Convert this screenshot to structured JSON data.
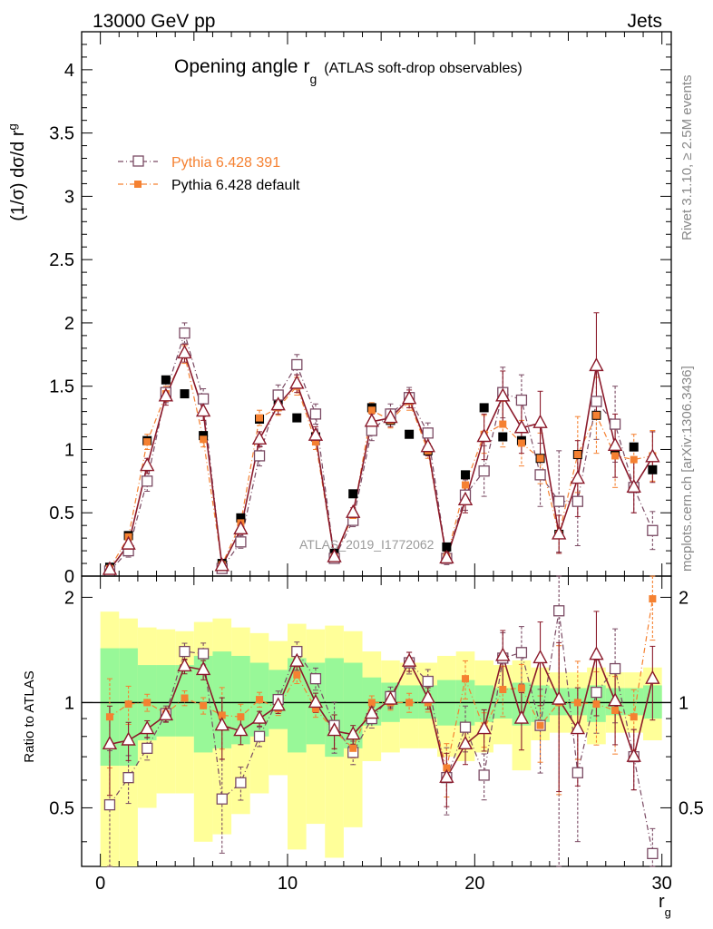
{
  "header": {
    "left": "13000 GeV pp",
    "right": "Jets"
  },
  "title": {
    "main": "Opening angle r",
    "main_sub": "g",
    "detail": "(ATLAS soft-drop observables)"
  },
  "side_labels": {
    "rivet": "Rivet 3.1.10, ≥ 2.5M events",
    "mcplots": "mcplots.cern.ch [arXiv:1306.3436]"
  },
  "watermark": "ATLAS_2019_I1772062",
  "colors": {
    "data": "#000000",
    "pythia391": "#7a4a63",
    "pythia_default": "#f58131",
    "third": "#8b1a2b",
    "band_inner": "#98f898",
    "band_outer": "#ffff99"
  },
  "chart_data": [
    {
      "type": "scatter",
      "title": "Opening angle r_g (ATLAS soft-drop observables)",
      "xlabel": "r",
      "xlabel_sub": "g",
      "ylabel": "(1/σ) dσ/d r",
      "ylabel_sub": "g",
      "xlim": [
        -1,
        30.5
      ],
      "ylim": [
        0,
        4.3
      ],
      "x_ticks": [
        0,
        10,
        20,
        30
      ],
      "y_ticks": [
        "0",
        "0.5",
        "1",
        "1.5",
        "2",
        "2.5",
        "3",
        "3.5",
        "4"
      ],
      "legend_position": "upper-left",
      "x": [
        0.5,
        1.5,
        2.5,
        3.5,
        4.5,
        5.5,
        6.5,
        7.5,
        8.5,
        9.5,
        10.5,
        11.5,
        12.5,
        13.5,
        14.5,
        15.5,
        16.5,
        17.5,
        18.5,
        19.5,
        20.5,
        21.5,
        22.5,
        23.5,
        24.5,
        25.5,
        26.5,
        27.5,
        28.5,
        29.5
      ],
      "series": [
        {
          "name": "",
          "role": "data",
          "marker": "filled-square",
          "values": [
            0.07,
            0.32,
            1.07,
            1.55,
            1.44,
            1.11,
            0.1,
            0.46,
            1.24,
            1.39,
            1.25,
            1.1,
            0.18,
            0.65,
            1.33,
            1.23,
            1.12,
            0.99,
            0.23,
            0.8,
            1.33,
            1.1,
            1.07,
            0.93,
            0.33,
            0.96,
            1.27,
            1.0,
            1.02,
            0.84
          ]
        },
        {
          "name": "Pythia 6.428 391",
          "role": "mc",
          "marker": "open-square",
          "values": [
            0.04,
            0.2,
            0.75,
            1.45,
            1.92,
            1.4,
            0.06,
            0.27,
            0.95,
            1.43,
            1.67,
            1.28,
            0.14,
            0.44,
            1.15,
            1.28,
            1.41,
            1.13,
            0.14,
            0.64,
            0.83,
            1.45,
            1.39,
            0.8,
            0.59,
            0.59,
            1.38,
            1.2,
            0.7,
            0.36
          ],
          "err": [
            0.03,
            0.05,
            0.08,
            0.08,
            0.08,
            0.08,
            0.03,
            0.05,
            0.08,
            0.08,
            0.08,
            0.08,
            0.03,
            0.05,
            0.08,
            0.08,
            0.08,
            0.08,
            0.05,
            0.12,
            0.2,
            0.2,
            0.2,
            0.25,
            0.4,
            0.35,
            0.3,
            0.3,
            0.2,
            0.15
          ]
        },
        {
          "name": "Pythia 6.428 default",
          "role": "mc",
          "marker": "filled-square",
          "values": [
            0.06,
            0.31,
            1.06,
            1.44,
            1.75,
            1.08,
            0.09,
            0.42,
            1.25,
            1.33,
            1.5,
            1.06,
            0.15,
            0.48,
            1.31,
            1.23,
            1.38,
            0.99,
            0.15,
            0.72,
            1.12,
            1.2,
            1.05,
            0.93,
            0.33,
            0.96,
            1.27,
            0.95,
            0.92,
            0.95
          ],
          "err": [
            0.02,
            0.04,
            0.06,
            0.06,
            0.07,
            0.06,
            0.02,
            0.04,
            0.06,
            0.06,
            0.07,
            0.06,
            0.02,
            0.04,
            0.06,
            0.06,
            0.07,
            0.06,
            0.04,
            0.1,
            0.15,
            0.18,
            0.18,
            0.2,
            0.15,
            0.3,
            0.3,
            0.25,
            0.2,
            0.2
          ]
        },
        {
          "name": "",
          "role": "mc",
          "marker": "open-triangle",
          "values": [
            0.05,
            0.25,
            0.87,
            1.42,
            1.76,
            1.3,
            0.08,
            0.37,
            1.08,
            1.35,
            1.52,
            1.11,
            0.15,
            0.5,
            1.22,
            1.25,
            1.4,
            1.02,
            0.14,
            0.6,
            1.1,
            1.42,
            1.17,
            1.21,
            0.33,
            0.77,
            1.66,
            1.03,
            0.7,
            0.94
          ],
          "err": [
            0.02,
            0.04,
            0.06,
            0.07,
            0.07,
            0.07,
            0.02,
            0.04,
            0.06,
            0.07,
            0.07,
            0.07,
            0.02,
            0.04,
            0.06,
            0.07,
            0.07,
            0.07,
            0.04,
            0.1,
            0.18,
            0.2,
            0.2,
            0.25,
            0.15,
            0.3,
            0.42,
            0.25,
            0.2,
            0.2
          ]
        }
      ]
    },
    {
      "type": "scatter",
      "ylabel": "Ratio to ATLAS",
      "xlim": [
        -1,
        30.5
      ],
      "ylim": [
        0.34,
        2.3
      ],
      "y_ticks": [
        "0.5",
        "1",
        "2"
      ],
      "reference_line": 1,
      "band_inner": [
        [
          0.66,
          1.43
        ],
        [
          0.66,
          1.43
        ],
        [
          0.78,
          1.28
        ],
        [
          0.8,
          1.28
        ],
        [
          0.8,
          1.28
        ],
        [
          0.72,
          1.36
        ],
        [
          0.74,
          1.4
        ],
        [
          0.76,
          1.36
        ],
        [
          0.8,
          1.3
        ],
        [
          0.84,
          1.24
        ],
        [
          0.72,
          1.34
        ],
        [
          0.76,
          1.3
        ],
        [
          0.7,
          1.34
        ],
        [
          0.74,
          1.3
        ],
        [
          0.86,
          1.18
        ],
        [
          0.88,
          1.14
        ],
        [
          0.9,
          1.12
        ],
        [
          0.9,
          1.12
        ],
        [
          0.86,
          1.16
        ],
        [
          0.86,
          1.16
        ],
        [
          0.88,
          1.12
        ],
        [
          0.9,
          1.1
        ],
        [
          0.86,
          1.14
        ],
        [
          0.88,
          1.12
        ],
        [
          0.92,
          1.1
        ],
        [
          0.92,
          1.1
        ],
        [
          0.88,
          1.12
        ],
        [
          0.92,
          1.1
        ],
        [
          0.92,
          1.1
        ],
        [
          0.9,
          1.12
        ]
      ],
      "band_outer": [
        [
          0.34,
          1.82
        ],
        [
          0.34,
          1.74
        ],
        [
          0.5,
          1.64
        ],
        [
          0.55,
          1.62
        ],
        [
          0.55,
          1.6
        ],
        [
          0.4,
          1.7
        ],
        [
          0.42,
          1.74
        ],
        [
          0.48,
          1.64
        ],
        [
          0.55,
          1.58
        ],
        [
          0.62,
          1.5
        ],
        [
          0.38,
          1.68
        ],
        [
          0.45,
          1.62
        ],
        [
          0.36,
          1.66
        ],
        [
          0.44,
          1.6
        ],
        [
          0.68,
          1.4
        ],
        [
          0.72,
          1.32
        ],
        [
          0.74,
          1.3
        ],
        [
          0.74,
          1.3
        ],
        [
          0.7,
          1.36
        ],
        [
          0.68,
          1.4
        ],
        [
          0.72,
          1.32
        ],
        [
          0.76,
          1.28
        ],
        [
          0.64,
          1.32
        ],
        [
          0.78,
          1.26
        ],
        [
          0.82,
          1.22
        ],
        [
          0.82,
          1.22
        ],
        [
          0.76,
          1.26
        ],
        [
          0.82,
          1.22
        ],
        [
          0.82,
          1.22
        ],
        [
          0.78,
          1.26
        ]
      ],
      "series": [
        {
          "name": "Pythia 6.428 391",
          "values": [
            0.51,
            0.61,
            0.74,
            0.93,
            1.4,
            1.38,
            0.53,
            0.59,
            0.8,
            1.02,
            1.4,
            1.17,
            0.86,
            0.72,
            0.9,
            1.04,
            1.3,
            1.15,
            0.61,
            0.85,
            0.62,
            1.34,
            1.39,
            0.86,
            1.83,
            0.63,
            1.07,
            1.25,
            0.7,
            0.37
          ]
        },
        {
          "name": "Pythia 6.428 default",
          "values": [
            0.91,
            0.99,
            1.0,
            0.93,
            1.03,
            0.98,
            0.92,
            0.91,
            1.02,
            0.96,
            1.2,
            0.96,
            0.83,
            0.74,
            1.0,
            1.0,
            1.0,
            1.0,
            0.65,
            1.17,
            0.84,
            1.09,
            1.1,
            0.86,
            1.0,
            1.0,
            0.99,
            0.95,
            0.91,
            1.98
          ]
        },
        {
          "name": "",
          "values": [
            0.76,
            0.78,
            0.84,
            0.92,
            1.27,
            1.24,
            0.86,
            0.83,
            0.9,
            0.98,
            1.31,
            1.0,
            0.83,
            0.81,
            0.93,
            1.02,
            1.31,
            1.03,
            0.61,
            0.76,
            0.84,
            1.36,
            0.9,
            1.34,
            1.02,
            0.84,
            1.37,
            1.01,
            0.7,
            1.17
          ]
        }
      ]
    }
  ]
}
